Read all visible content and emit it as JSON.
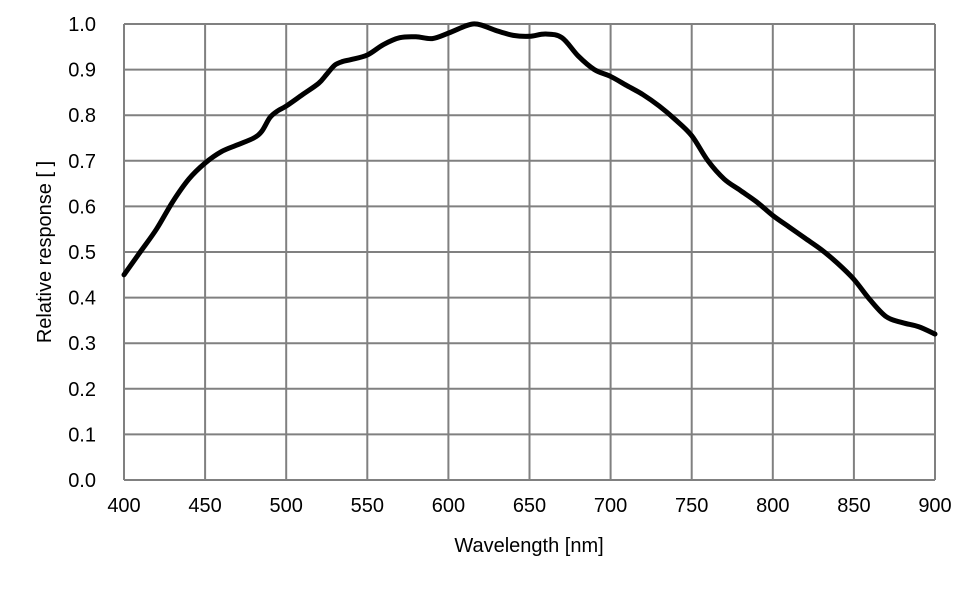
{
  "chart_data": {
    "type": "line",
    "title": "",
    "xlabel": "Wavelength [nm]",
    "ylabel": "Relative response [ ]",
    "xlim": [
      400,
      900
    ],
    "ylim": [
      0.0,
      1.0
    ],
    "x_ticks": [
      400,
      450,
      500,
      550,
      600,
      650,
      700,
      750,
      800,
      850,
      900
    ],
    "y_ticks": [
      "0.0",
      "0.1",
      "0.2",
      "0.3",
      "0.4",
      "0.5",
      "0.6",
      "0.7",
      "0.8",
      "0.9",
      "1.0"
    ],
    "grid": true,
    "legend": "none",
    "series": [
      {
        "color": "#000000",
        "x": [
          400,
          410,
          420,
          430,
          440,
          450,
          460,
          470,
          480,
          485,
          490,
          495,
          500,
          510,
          520,
          525,
          530,
          535,
          540,
          550,
          560,
          570,
          580,
          590,
          600,
          610,
          615,
          620,
          630,
          640,
          650,
          660,
          670,
          680,
          690,
          700,
          710,
          720,
          730,
          740,
          750,
          760,
          770,
          780,
          790,
          800,
          810,
          820,
          830,
          840,
          850,
          860,
          870,
          880,
          890,
          900
        ],
        "y": [
          0.45,
          0.5,
          0.55,
          0.61,
          0.66,
          0.695,
          0.72,
          0.735,
          0.75,
          0.765,
          0.795,
          0.81,
          0.82,
          0.845,
          0.87,
          0.89,
          0.91,
          0.918,
          0.922,
          0.932,
          0.955,
          0.97,
          0.972,
          0.968,
          0.98,
          0.995,
          1.0,
          0.998,
          0.985,
          0.975,
          0.973,
          0.978,
          0.97,
          0.93,
          0.9,
          0.885,
          0.865,
          0.845,
          0.82,
          0.79,
          0.755,
          0.7,
          0.66,
          0.635,
          0.61,
          0.58,
          0.555,
          0.53,
          0.505,
          0.475,
          0.44,
          0.395,
          0.358,
          0.345,
          0.336,
          0.32
        ]
      }
    ]
  }
}
